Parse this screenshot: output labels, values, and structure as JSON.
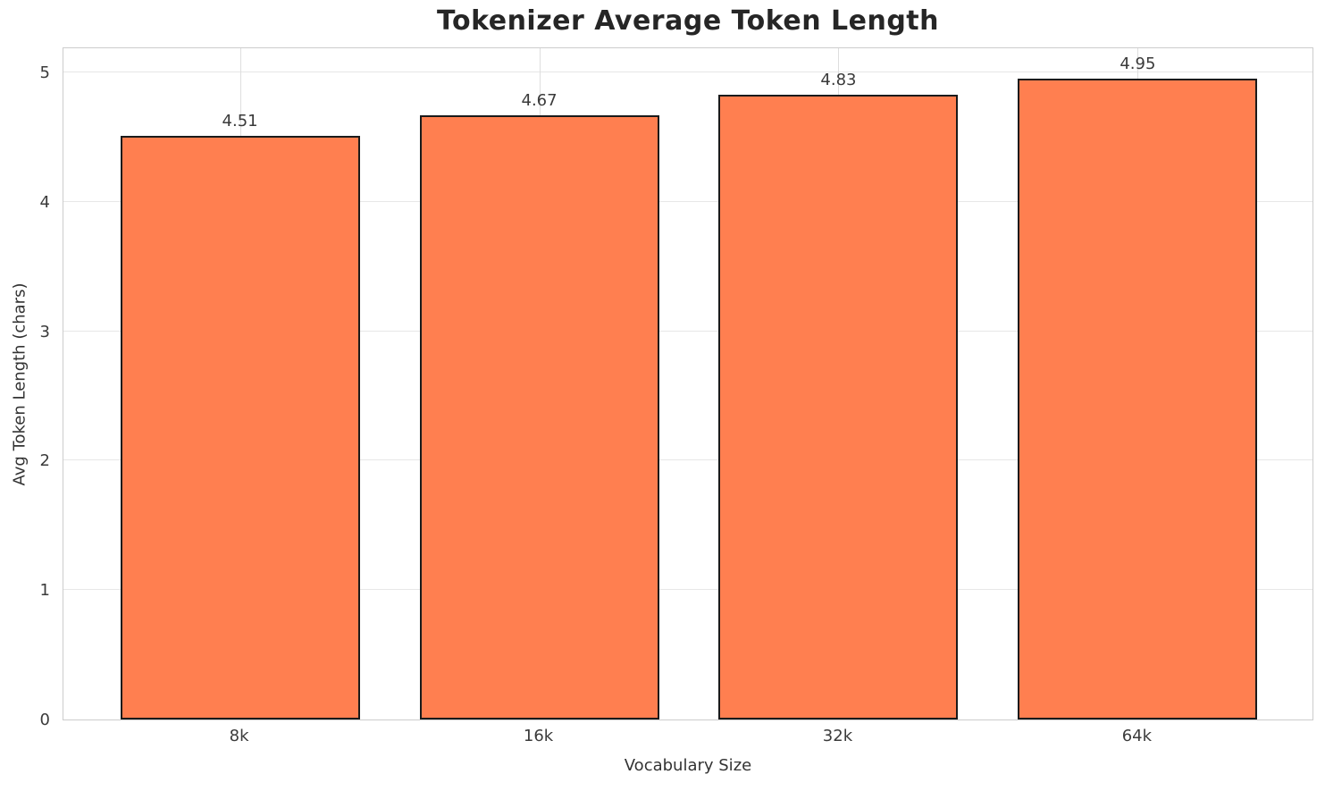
{
  "chart_data": {
    "type": "bar",
    "title": "Tokenizer Average Token Length",
    "xlabel": "Vocabulary Size",
    "ylabel": "Avg Token Length (chars)",
    "categories": [
      "8k",
      "16k",
      "32k",
      "64k"
    ],
    "values": [
      4.51,
      4.67,
      4.83,
      4.95
    ],
    "value_labels": [
      "4.51",
      "4.67",
      "4.83",
      "4.95"
    ],
    "yticks": [
      0,
      1,
      2,
      3,
      4,
      5
    ],
    "ylim": [
      0,
      5.2
    ],
    "grid": true,
    "legend_position": "none",
    "colors": {
      "bar_fill": "#FF7F50",
      "bar_edge": "#1a1a1a",
      "horizontal_grid": "#e7e7e7",
      "vertical_grid": "#dedede",
      "spine": "#cccccc",
      "title_text": "#262626",
      "tick_text": "#3b3b3b",
      "background": "#ffffff"
    }
  }
}
